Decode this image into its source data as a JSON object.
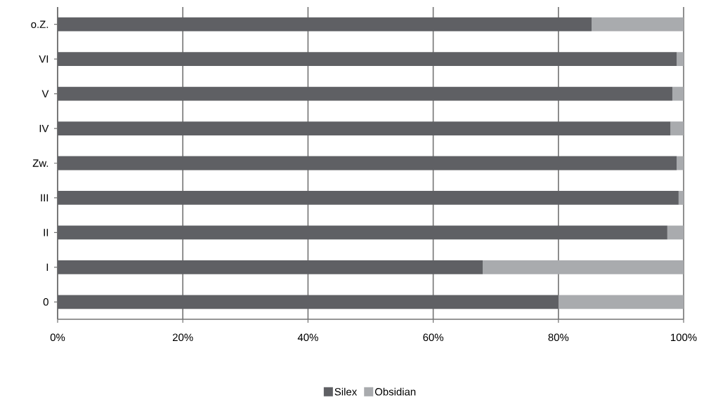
{
  "chart_data": {
    "type": "bar",
    "orientation": "horizontal",
    "stacked": true,
    "grid": "x",
    "legend": "bottom",
    "categories": [
      "o.Z.",
      "VI",
      "V",
      "IV",
      "Zw.",
      "III",
      "II",
      "I",
      "0"
    ],
    "xlim": [
      0,
      100
    ],
    "xticks": [
      {
        "value": 0,
        "label": "0%"
      },
      {
        "value": 20,
        "label": "20%"
      },
      {
        "value": 40,
        "label": "40%"
      },
      {
        "value": 60,
        "label": "60%"
      },
      {
        "value": 80,
        "label": "80%"
      },
      {
        "value": 100,
        "label": "100%"
      }
    ],
    "series": [
      {
        "name": "Silex",
        "color": "#5f6064",
        "values": [
          85.3,
          98.9,
          98.2,
          97.9,
          98.9,
          99.2,
          97.4,
          67.9,
          80
        ]
      },
      {
        "name": "Obsidian",
        "color": "#a9abae",
        "values": [
          14.7,
          1.1,
          1.8,
          2.1,
          1.1,
          0.8,
          2.6,
          32.1,
          20
        ]
      }
    ]
  }
}
